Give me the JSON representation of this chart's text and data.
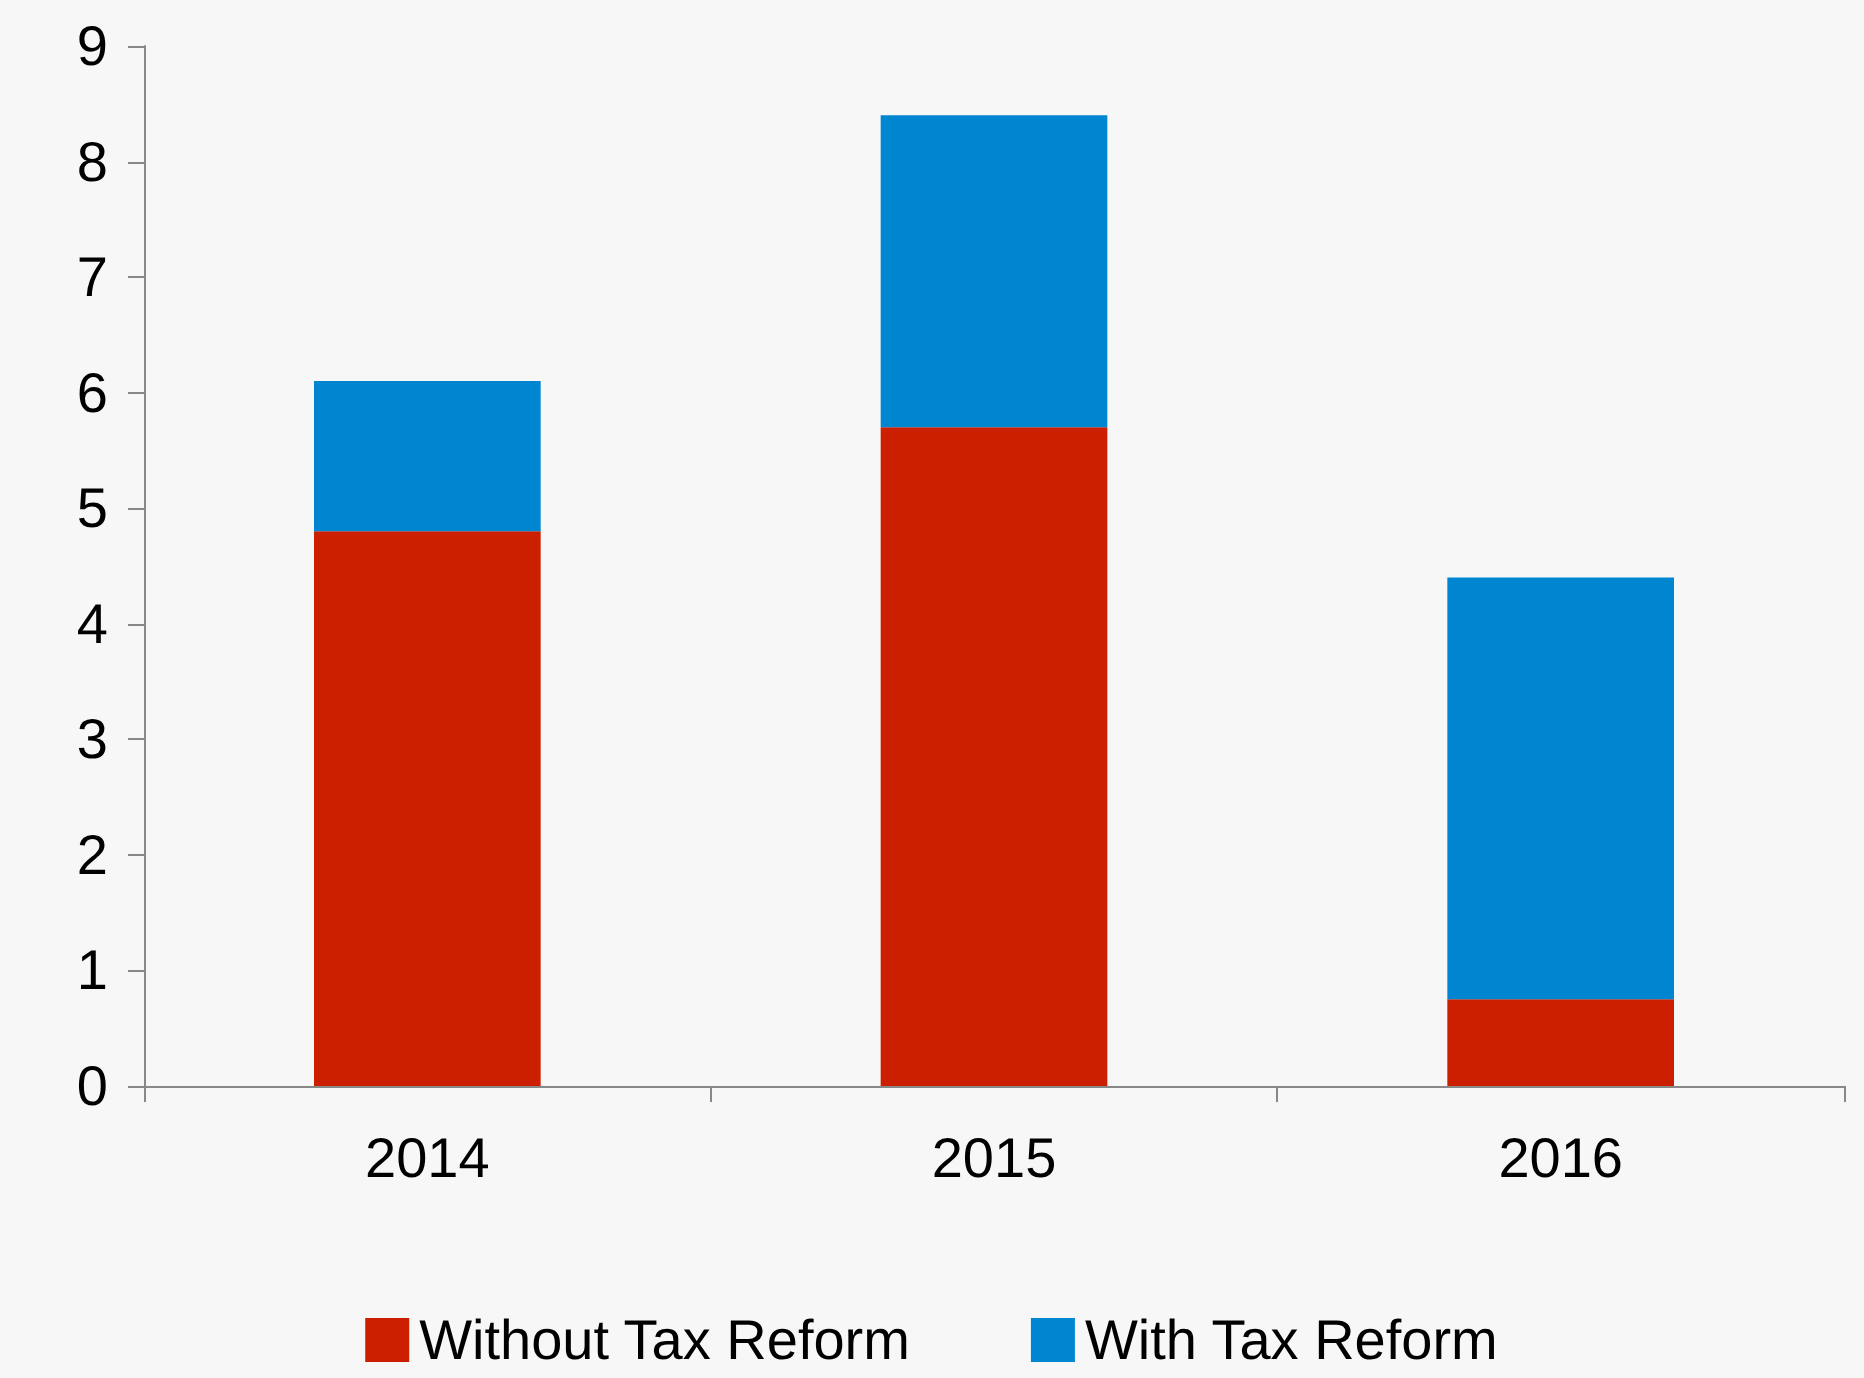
{
  "chart_data": {
    "type": "bar",
    "stacked": true,
    "categories": [
      "2014",
      "2015",
      "2016"
    ],
    "series": [
      {
        "name": "Without Tax Reform",
        "color": "#cc1f00",
        "values": [
          4.8,
          5.7,
          0.75
        ]
      },
      {
        "name": "With Tax Reform",
        "color": "#0085d1",
        "values": [
          1.3,
          2.7,
          3.65
        ]
      }
    ],
    "ylim": [
      0,
      9
    ],
    "yticks": [
      0,
      1,
      2,
      3,
      4,
      5,
      6,
      7,
      8,
      9
    ],
    "grid": false,
    "legend": "bottom"
  }
}
